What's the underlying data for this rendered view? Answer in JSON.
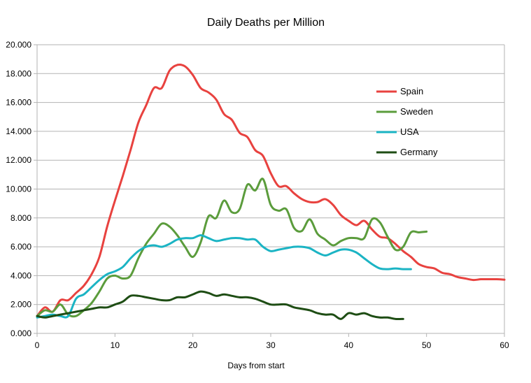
{
  "chart_data": {
    "type": "line",
    "title": "Daily Deaths per Million",
    "xlabel": "Days from start",
    "ylabel": "",
    "xlim": [
      0,
      60
    ],
    "ylim": [
      0,
      20
    ],
    "x_ticks": [
      0,
      10,
      20,
      30,
      40,
      50,
      60
    ],
    "y_ticks": [
      0,
      2,
      4,
      6,
      8,
      10,
      12,
      14,
      16,
      18,
      20
    ],
    "x_tick_labels": [
      "0",
      "10",
      "20",
      "30",
      "40",
      "50",
      "60"
    ],
    "y_tick_labels": [
      "0.000",
      "2.000",
      "4.000",
      "6.000",
      "8.000",
      "10.000",
      "12.000",
      "14.000",
      "16.000",
      "18.000",
      "20.000"
    ],
    "grid": "horizontal",
    "legend_position": "right",
    "series": [
      {
        "name": "Spain",
        "color": "#e8423f",
        "x": [
          0,
          1,
          2,
          3,
          4,
          5,
          6,
          7,
          8,
          9,
          10,
          11,
          12,
          13,
          14,
          15,
          16,
          17,
          18,
          19,
          20,
          21,
          22,
          23,
          24,
          25,
          26,
          27,
          28,
          29,
          30,
          31,
          32,
          33,
          34,
          35,
          36,
          37,
          38,
          39,
          40,
          41,
          42,
          43,
          44,
          45,
          46,
          47,
          48,
          49,
          50,
          51,
          52,
          53,
          54,
          55,
          56,
          57,
          58,
          59,
          60
        ],
        "y": [
          1.2,
          1.8,
          1.5,
          2.3,
          2.3,
          2.8,
          3.3,
          4.1,
          5.3,
          7.4,
          9.2,
          10.9,
          12.7,
          14.6,
          15.8,
          17.0,
          17.0,
          18.2,
          18.6,
          18.5,
          17.9,
          17.0,
          16.7,
          16.2,
          15.2,
          14.8,
          13.9,
          13.6,
          12.7,
          12.3,
          11.1,
          10.2,
          10.2,
          9.7,
          9.3,
          9.1,
          9.1,
          9.3,
          8.9,
          8.2,
          7.8,
          7.5,
          7.8,
          7.2,
          6.7,
          6.6,
          6.2,
          5.7,
          5.3,
          4.8,
          4.6,
          4.5,
          4.2,
          4.1,
          3.9,
          3.8,
          3.7,
          3.75,
          3.75,
          3.75,
          3.72
        ]
      },
      {
        "name": "Sweden",
        "color": "#5b9c3c",
        "x": [
          0,
          1,
          2,
          3,
          4,
          5,
          6,
          7,
          8,
          9,
          10,
          11,
          12,
          13,
          14,
          15,
          16,
          17,
          18,
          19,
          20,
          21,
          22,
          23,
          24,
          25,
          26,
          27,
          28,
          29,
          30,
          31,
          32,
          33,
          34,
          35,
          36,
          37,
          38,
          39,
          40,
          41,
          42,
          43,
          44,
          45,
          46,
          47,
          48,
          49,
          50
        ],
        "y": [
          1.2,
          1.6,
          1.5,
          2.0,
          1.3,
          1.2,
          1.6,
          2.1,
          2.9,
          3.8,
          4.0,
          3.8,
          4.0,
          5.2,
          6.2,
          6.9,
          7.6,
          7.4,
          6.8,
          6.0,
          5.3,
          6.3,
          8.1,
          8.0,
          9.2,
          8.4,
          8.6,
          10.3,
          9.9,
          10.7,
          8.9,
          8.5,
          8.6,
          7.3,
          7.1,
          7.9,
          6.9,
          6.5,
          6.1,
          6.4,
          6.6,
          6.6,
          6.6,
          7.9,
          7.7,
          6.7,
          5.8,
          6.0,
          7.0,
          7.0,
          7.05
        ]
      },
      {
        "name": "USA",
        "color": "#1bb4c4",
        "x": [
          0,
          1,
          2,
          3,
          4,
          5,
          6,
          7,
          8,
          9,
          10,
          11,
          12,
          13,
          14,
          15,
          16,
          17,
          18,
          19,
          20,
          21,
          22,
          23,
          24,
          25,
          26,
          27,
          28,
          29,
          30,
          31,
          32,
          33,
          34,
          35,
          36,
          37,
          38,
          39,
          40,
          41,
          42,
          43,
          44,
          45,
          46,
          47,
          48
        ],
        "y": [
          1.1,
          1.2,
          1.3,
          1.2,
          1.2,
          2.4,
          2.7,
          3.2,
          3.7,
          4.1,
          4.3,
          4.6,
          5.2,
          5.7,
          6.0,
          6.1,
          6.0,
          6.2,
          6.5,
          6.6,
          6.6,
          6.8,
          6.6,
          6.4,
          6.5,
          6.6,
          6.6,
          6.5,
          6.5,
          6.0,
          5.7,
          5.8,
          5.9,
          6.0,
          6.0,
          5.9,
          5.6,
          5.4,
          5.6,
          5.8,
          5.8,
          5.6,
          5.2,
          4.8,
          4.5,
          4.45,
          4.5,
          4.45,
          4.45
        ]
      },
      {
        "name": "Germany",
        "color": "#1e4d14",
        "x": [
          0,
          1,
          2,
          3,
          4,
          5,
          6,
          7,
          8,
          9,
          10,
          11,
          12,
          13,
          14,
          15,
          16,
          17,
          18,
          19,
          20,
          21,
          22,
          23,
          24,
          25,
          26,
          27,
          28,
          29,
          30,
          31,
          32,
          33,
          34,
          35,
          36,
          37,
          38,
          39,
          40,
          41,
          42,
          43,
          44,
          45,
          46,
          47
        ],
        "y": [
          1.2,
          1.1,
          1.2,
          1.3,
          1.4,
          1.5,
          1.6,
          1.7,
          1.8,
          1.8,
          2.0,
          2.2,
          2.6,
          2.6,
          2.5,
          2.4,
          2.3,
          2.3,
          2.5,
          2.5,
          2.7,
          2.9,
          2.8,
          2.6,
          2.7,
          2.6,
          2.5,
          2.5,
          2.4,
          2.2,
          2.0,
          2.0,
          2.0,
          1.8,
          1.7,
          1.6,
          1.4,
          1.3,
          1.3,
          1.0,
          1.4,
          1.3,
          1.4,
          1.2,
          1.1,
          1.1,
          1.0,
          1.0
        ]
      }
    ]
  }
}
